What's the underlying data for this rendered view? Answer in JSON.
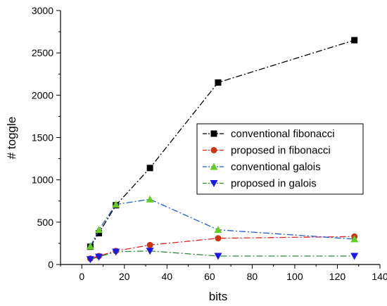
{
  "chart_data": {
    "type": "line",
    "title": "",
    "xlabel": "bits",
    "ylabel": "# toggle",
    "xlim": [
      -10,
      140
    ],
    "ylim": [
      0,
      3000
    ],
    "x_ticks": [
      0,
      20,
      40,
      60,
      80,
      100,
      120,
      140
    ],
    "y_ticks": [
      0,
      500,
      1000,
      1500,
      2000,
      2500,
      3000
    ],
    "grid": false,
    "legend_position": "center-right",
    "series": [
      {
        "name": "conventional fibonacci",
        "color": "#000000",
        "marker": "square",
        "x": [
          4,
          8,
          16,
          32,
          64,
          128
        ],
        "y": [
          210,
          370,
          700,
          1140,
          2150,
          2650
        ]
      },
      {
        "name": "proposed in fibonacci",
        "color": "#e8201a",
        "marker": "circle",
        "x": [
          4,
          8,
          16,
          32,
          64,
          128
        ],
        "y": [
          70,
          100,
          160,
          230,
          310,
          330
        ]
      },
      {
        "name": "conventional galois",
        "color": "#1f5fd6",
        "marker": "triangle-up",
        "x": [
          4,
          8,
          16,
          32,
          64,
          128
        ],
        "y": [
          215,
          410,
          710,
          770,
          410,
          300
        ]
      },
      {
        "name": "proposed in galois",
        "color": "#2e8b3a",
        "marker": "triangle-down",
        "x": [
          4,
          8,
          16,
          32,
          64,
          128
        ],
        "y": [
          60,
          90,
          150,
          160,
          100,
          100
        ]
      }
    ]
  },
  "marker_fill": {
    "square": "#000000",
    "circle": "#cc3311",
    "triangle-up": "#66cc22",
    "triangle-down": "#1a1ae6"
  }
}
